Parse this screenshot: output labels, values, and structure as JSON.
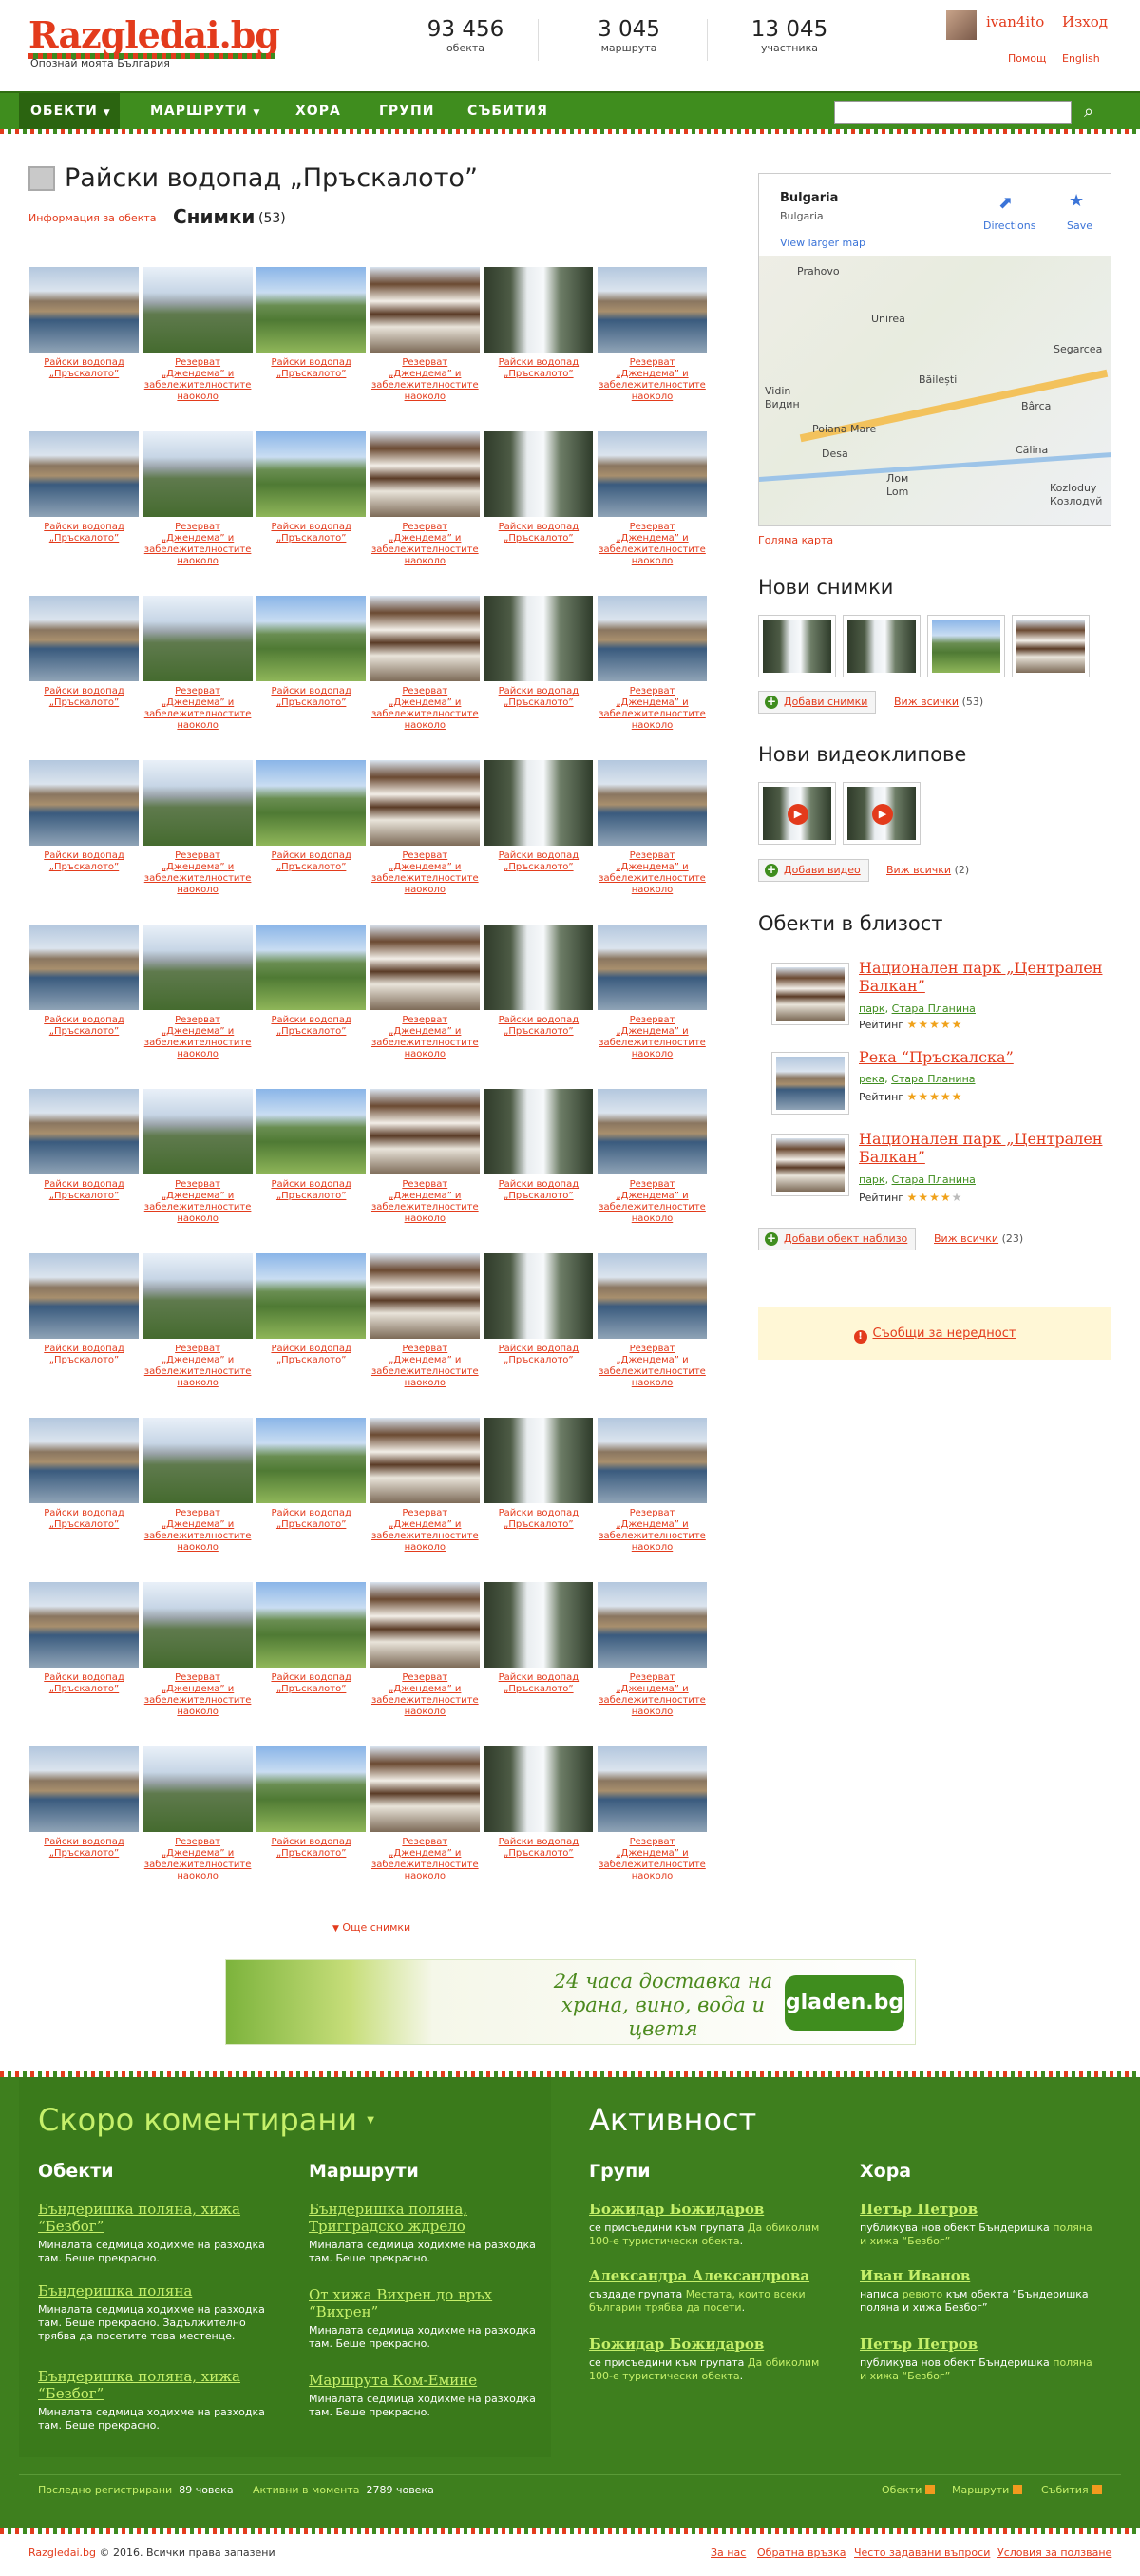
{
  "header": {
    "logo": "Razgledai.bg",
    "tagline": "Опознай моята България",
    "stats": [
      {
        "value": "93 456",
        "label": "обекта"
      },
      {
        "value": "3 045",
        "label": "маршрута"
      },
      {
        "value": "13 045",
        "label": "участника"
      }
    ],
    "user": "ivan4ito",
    "logout": "Изход",
    "help": "Помощ",
    "english": "English"
  },
  "nav": {
    "items": [
      "ОБЕКТИ",
      "МАРШРУТИ",
      "ХОРА",
      "ГРУПИ",
      "СЪБИТИЯ"
    ],
    "search_placeholder": ""
  },
  "page": {
    "title": "Райски водопад „Пръскалото”",
    "info_link": "Информация за обекта",
    "photos_title": "Снимки",
    "photos_count": "(53)",
    "more_photos": "Още снимки"
  },
  "photo_grid": {
    "captions": [
      "Райски водопад „Пръскалото”",
      "Резерват „Джендема” и забележителностите наоколо",
      "Райски водопад „Пръскалото”",
      "Резерват „Джендема” и забележителностите наоколо",
      "Райски водопад „Пръскалото”",
      "Резерват „Джендема” и забележителностите наоколо"
    ],
    "rows": 10
  },
  "banner": {
    "text": "24 часа доставка на храна, вино, вода и цветя",
    "logo": "gladen.bg"
  },
  "sidebar": {
    "map": {
      "place": "Bulgaria",
      "sub": "Bulgaria",
      "larger": "View larger map",
      "directions": "Directions",
      "save": "Save",
      "towns": [
        "Prahovo",
        "Unirea",
        "Vidin",
        "Видин",
        "Băilești",
        "Segarcea",
        "Poiana Mare",
        "Bârca",
        "Desa",
        "Călina",
        "Лом",
        "Lom",
        "Kozloduy",
        "Козлодуй"
      ]
    },
    "big_map": "Голяма карта",
    "new_photos": "Нови снимки",
    "add_photos": "Добави снимки",
    "see_all_photos": "Виж всички",
    "see_all_photos_count": "(53)",
    "new_videos": "Нови видеоклипове",
    "add_video": "Добави видео",
    "see_all_videos": "Виж всички",
    "see_all_videos_count": "(2)",
    "nearby_title": "Обекти в близост",
    "nearby": [
      {
        "name": "Национален парк „Централен Балкан”",
        "tag1": "парк",
        "tag2": "Стара Планина",
        "rating_label": "Рейтинг",
        "rating": 5
      },
      {
        "name": "Река “Пръскалска”",
        "tag1": "река",
        "tag2": "Стара Планина",
        "rating_label": "Рейтинг",
        "rating": 5
      },
      {
        "name": "Национален парк „Централен Балкан”",
        "tag1": "парк",
        "tag2": "Стара Планина",
        "rating_label": "Рейтинг",
        "rating": 4
      }
    ],
    "add_nearby": "Добави обект наблизо",
    "see_all_nearby": "Виж всички",
    "see_all_nearby_count": "(23)",
    "report": "Съобщи за нередност"
  },
  "footer": {
    "recent_title": "Скоро коментирани",
    "activity_title": "Активност",
    "objects_title": "Обекти",
    "routes_title": "Маршрути",
    "groups_title": "Групи",
    "people_title": "Хора",
    "objects": [
      {
        "title": "Бъндеришка поляна, хижа “Безбог”",
        "text": "Миналата седмица ходихме на разходка там. Беше прекрасно."
      },
      {
        "title": "Бъндеришка поляна",
        "text": "Миналата седмица ходихме на разходка там. Беше прекрасно. Задължително трябва да посетите това местенце."
      },
      {
        "title": "Бъндеришка поляна, хижа “Безбог”",
        "text": "Миналата седмица ходихме на разходка там. Беше прекрасно."
      }
    ],
    "routes": [
      {
        "title": "Бъндеришка поляна, Тригградско ждрело",
        "text": "Миналата седмица ходихме на разходка там. Беше прекрасно."
      },
      {
        "title": "От хижа Вихрен до връх “Вихрен”",
        "text": "Миналата седмица ходихме на разходка там. Беше прекрасно."
      },
      {
        "title": "Маршрута Ком-Емине",
        "text": "Миналата седмица ходихме на разходка там. Беше прекрасно."
      }
    ],
    "groups": [
      {
        "name": "Божидар Божидаров",
        "pre": "се присъедини към групата",
        "link": "Да обиколим 100-е туристически обекта",
        "post": "."
      },
      {
        "name": "Александра Александрова",
        "pre": "създаде групата",
        "link": "Местата, които всеки българин трябва да посети",
        "post": "."
      },
      {
        "name": "Божидар Божидаров",
        "pre": "се присъедини към групата",
        "link": "Да обиколим 100-е туристически обекта",
        "post": "."
      }
    ],
    "people": [
      {
        "name": "Петър Петров",
        "pre": "публикува нов обект Бъндеришка",
        "link": "поляна и хижа “Безбог”",
        "post": ""
      },
      {
        "name": "Иван Иванов",
        "pre": "написа",
        "link": "ревюто",
        "post": "към обекта “Бъндеришка поляна и хижа Безбог”"
      },
      {
        "name": "Петър Петров",
        "pre": "публикува нов обект Бъндеришка",
        "link": "поляна и хижа “Безбог”",
        "post": ""
      }
    ],
    "last_registered": "Последно регистрирани",
    "last_registered_count": "89 човека",
    "active_now": "Активни в момента",
    "active_now_count": "2789 човека",
    "rss_objects": "Обекти",
    "rss_routes": "Маршрути",
    "rss_events": "Събития"
  },
  "bottom": {
    "site": "Razgledai.bg",
    "copyright": "© 2016. Всички права запазени",
    "links": [
      "За нас",
      "Обратна връзка",
      "Често задавани въпроси",
      "Условия за ползване"
    ]
  }
}
